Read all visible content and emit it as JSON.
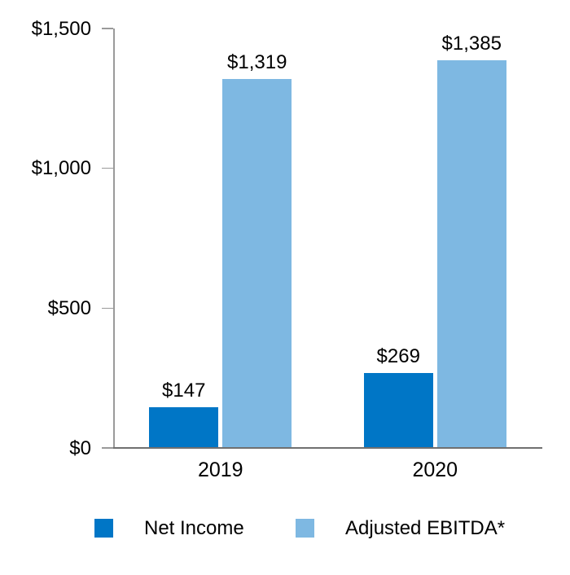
{
  "chart_data": {
    "type": "bar",
    "categories": [
      "2019",
      "2020"
    ],
    "series": [
      {
        "name": "Net Income",
        "values": [
          147,
          269
        ],
        "data_labels": [
          "$147",
          "$269"
        ],
        "color": "#0076C6"
      },
      {
        "name": "Adjusted EBITDA*",
        "values": [
          1319,
          1385
        ],
        "data_labels": [
          "$1,319",
          "$1,385"
        ],
        "color": "#7EB8E2"
      }
    ],
    "y_axis": {
      "min": 0,
      "max": 1500,
      "ticks": [
        {
          "value": 0,
          "label": "$0"
        },
        {
          "value": 500,
          "label": "$500"
        },
        {
          "value": 1000,
          "label": "$1,000"
        },
        {
          "value": 1500,
          "label": "$1,500"
        }
      ]
    },
    "title": "",
    "xlabel": "",
    "ylabel": "",
    "grid": false,
    "legend_position": "bottom"
  },
  "colors": {
    "x_axis_line": "#707070",
    "y_axis_line": "#9A9A9A",
    "tick_line": "#9A9A9A",
    "text": "#000000",
    "background": "#FFFFFF"
  }
}
